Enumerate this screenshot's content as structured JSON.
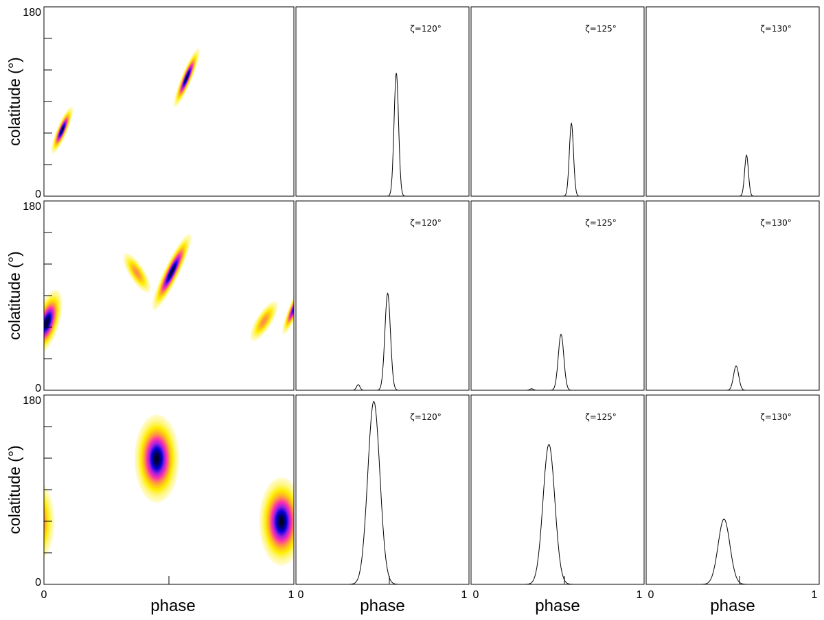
{
  "chart_data": {
    "type": "heatmap",
    "y_axis": {
      "label": "colatitude (°)",
      "min_label": "0",
      "max_label": "180",
      "range": [
        0,
        180
      ]
    },
    "x_axis": {
      "label": "phase",
      "min_label": "0",
      "max_label": "1",
      "range": [
        0,
        1
      ]
    },
    "colormap": [
      "#ffffff",
      "#ffee00",
      "#ff9a3c",
      "#ff30b0",
      "#9a20e0",
      "#0000dd",
      "#000022"
    ],
    "rows": [
      {
        "maps": [
          {
            "phase": 0.07,
            "colat": 63,
            "sigma_phase": 0.008,
            "sigma_colat": 8,
            "tilt": 0.3,
            "amp": 1.0
          },
          {
            "phase": 0.57,
            "colat": 113,
            "sigma_phase": 0.008,
            "sigma_colat": 10,
            "tilt": 0.3,
            "amp": 1.0
          }
        ],
        "profiles": [
          {
            "label": "ζ=120°",
            "peak_phase": 0.58,
            "peak_height": 0.66,
            "width": 0.013,
            "minor_phase": null,
            "minor_height": 0
          },
          {
            "label": "ζ=125°",
            "peak_phase": 0.58,
            "peak_height": 0.39,
            "width": 0.012,
            "minor_phase": null,
            "minor_height": 0
          },
          {
            "label": "ζ=130°",
            "peak_phase": 0.58,
            "peak_height": 0.22,
            "width": 0.011,
            "minor_phase": null,
            "minor_height": 0
          }
        ]
      },
      {
        "maps": [
          {
            "phase": 0.01,
            "colat": 65,
            "sigma_phase": 0.018,
            "sigma_colat": 11,
            "tilt": 0.2,
            "amp": 1.0
          },
          {
            "phase": 0.51,
            "colat": 113,
            "sigma_phase": 0.012,
            "sigma_colat": 13,
            "tilt": 0.35,
            "amp": 1.0
          },
          {
            "phase": 0.37,
            "colat": 112,
            "sigma_phase": 0.015,
            "sigma_colat": 8,
            "tilt": -0.4,
            "amp": 0.32
          },
          {
            "phase": 0.88,
            "colat": 66,
            "sigma_phase": 0.015,
            "sigma_colat": 8,
            "tilt": 0.4,
            "amp": 0.32
          },
          {
            "phase": 1.0,
            "colat": 78,
            "sigma_phase": 0.008,
            "sigma_colat": 9,
            "tilt": 0.3,
            "amp": 0.8
          }
        ],
        "profiles": [
          {
            "label": "ζ=120°",
            "peak_phase": 0.53,
            "peak_height": 0.52,
            "width": 0.016,
            "minor_phase": 0.36,
            "minor_height": 0.03
          },
          {
            "label": "ζ=125°",
            "peak_phase": 0.52,
            "peak_height": 0.3,
            "width": 0.016,
            "minor_phase": 0.35,
            "minor_height": 0.008
          },
          {
            "label": "ζ=130°",
            "peak_phase": 0.52,
            "peak_height": 0.13,
            "width": 0.015,
            "minor_phase": null,
            "minor_height": 0
          }
        ]
      },
      {
        "maps": [
          {
            "phase": 0.45,
            "colat": 120,
            "sigma_phase": 0.032,
            "sigma_colat": 15,
            "tilt": 0.0,
            "amp": 1.0
          },
          {
            "phase": 0.95,
            "colat": 60,
            "sigma_phase": 0.032,
            "sigma_colat": 15,
            "tilt": 0.0,
            "amp": 1.0
          },
          {
            "phase": -0.05,
            "colat": 60,
            "sigma_phase": 0.032,
            "sigma_colat": 15,
            "tilt": 0.0,
            "amp": 1.0
          }
        ],
        "profiles": [
          {
            "label": "ζ=120°",
            "peak_phase": 0.45,
            "peak_height": 0.98,
            "width": 0.035,
            "minor_phase": null,
            "minor_height": 0
          },
          {
            "label": "ζ=125°",
            "peak_phase": 0.45,
            "peak_height": 0.75,
            "width": 0.034,
            "minor_phase": null,
            "minor_height": 0
          },
          {
            "label": "ζ=130°",
            "peak_phase": 0.45,
            "peak_height": 0.35,
            "width": 0.034,
            "minor_phase": null,
            "minor_height": 0
          }
        ]
      }
    ]
  }
}
